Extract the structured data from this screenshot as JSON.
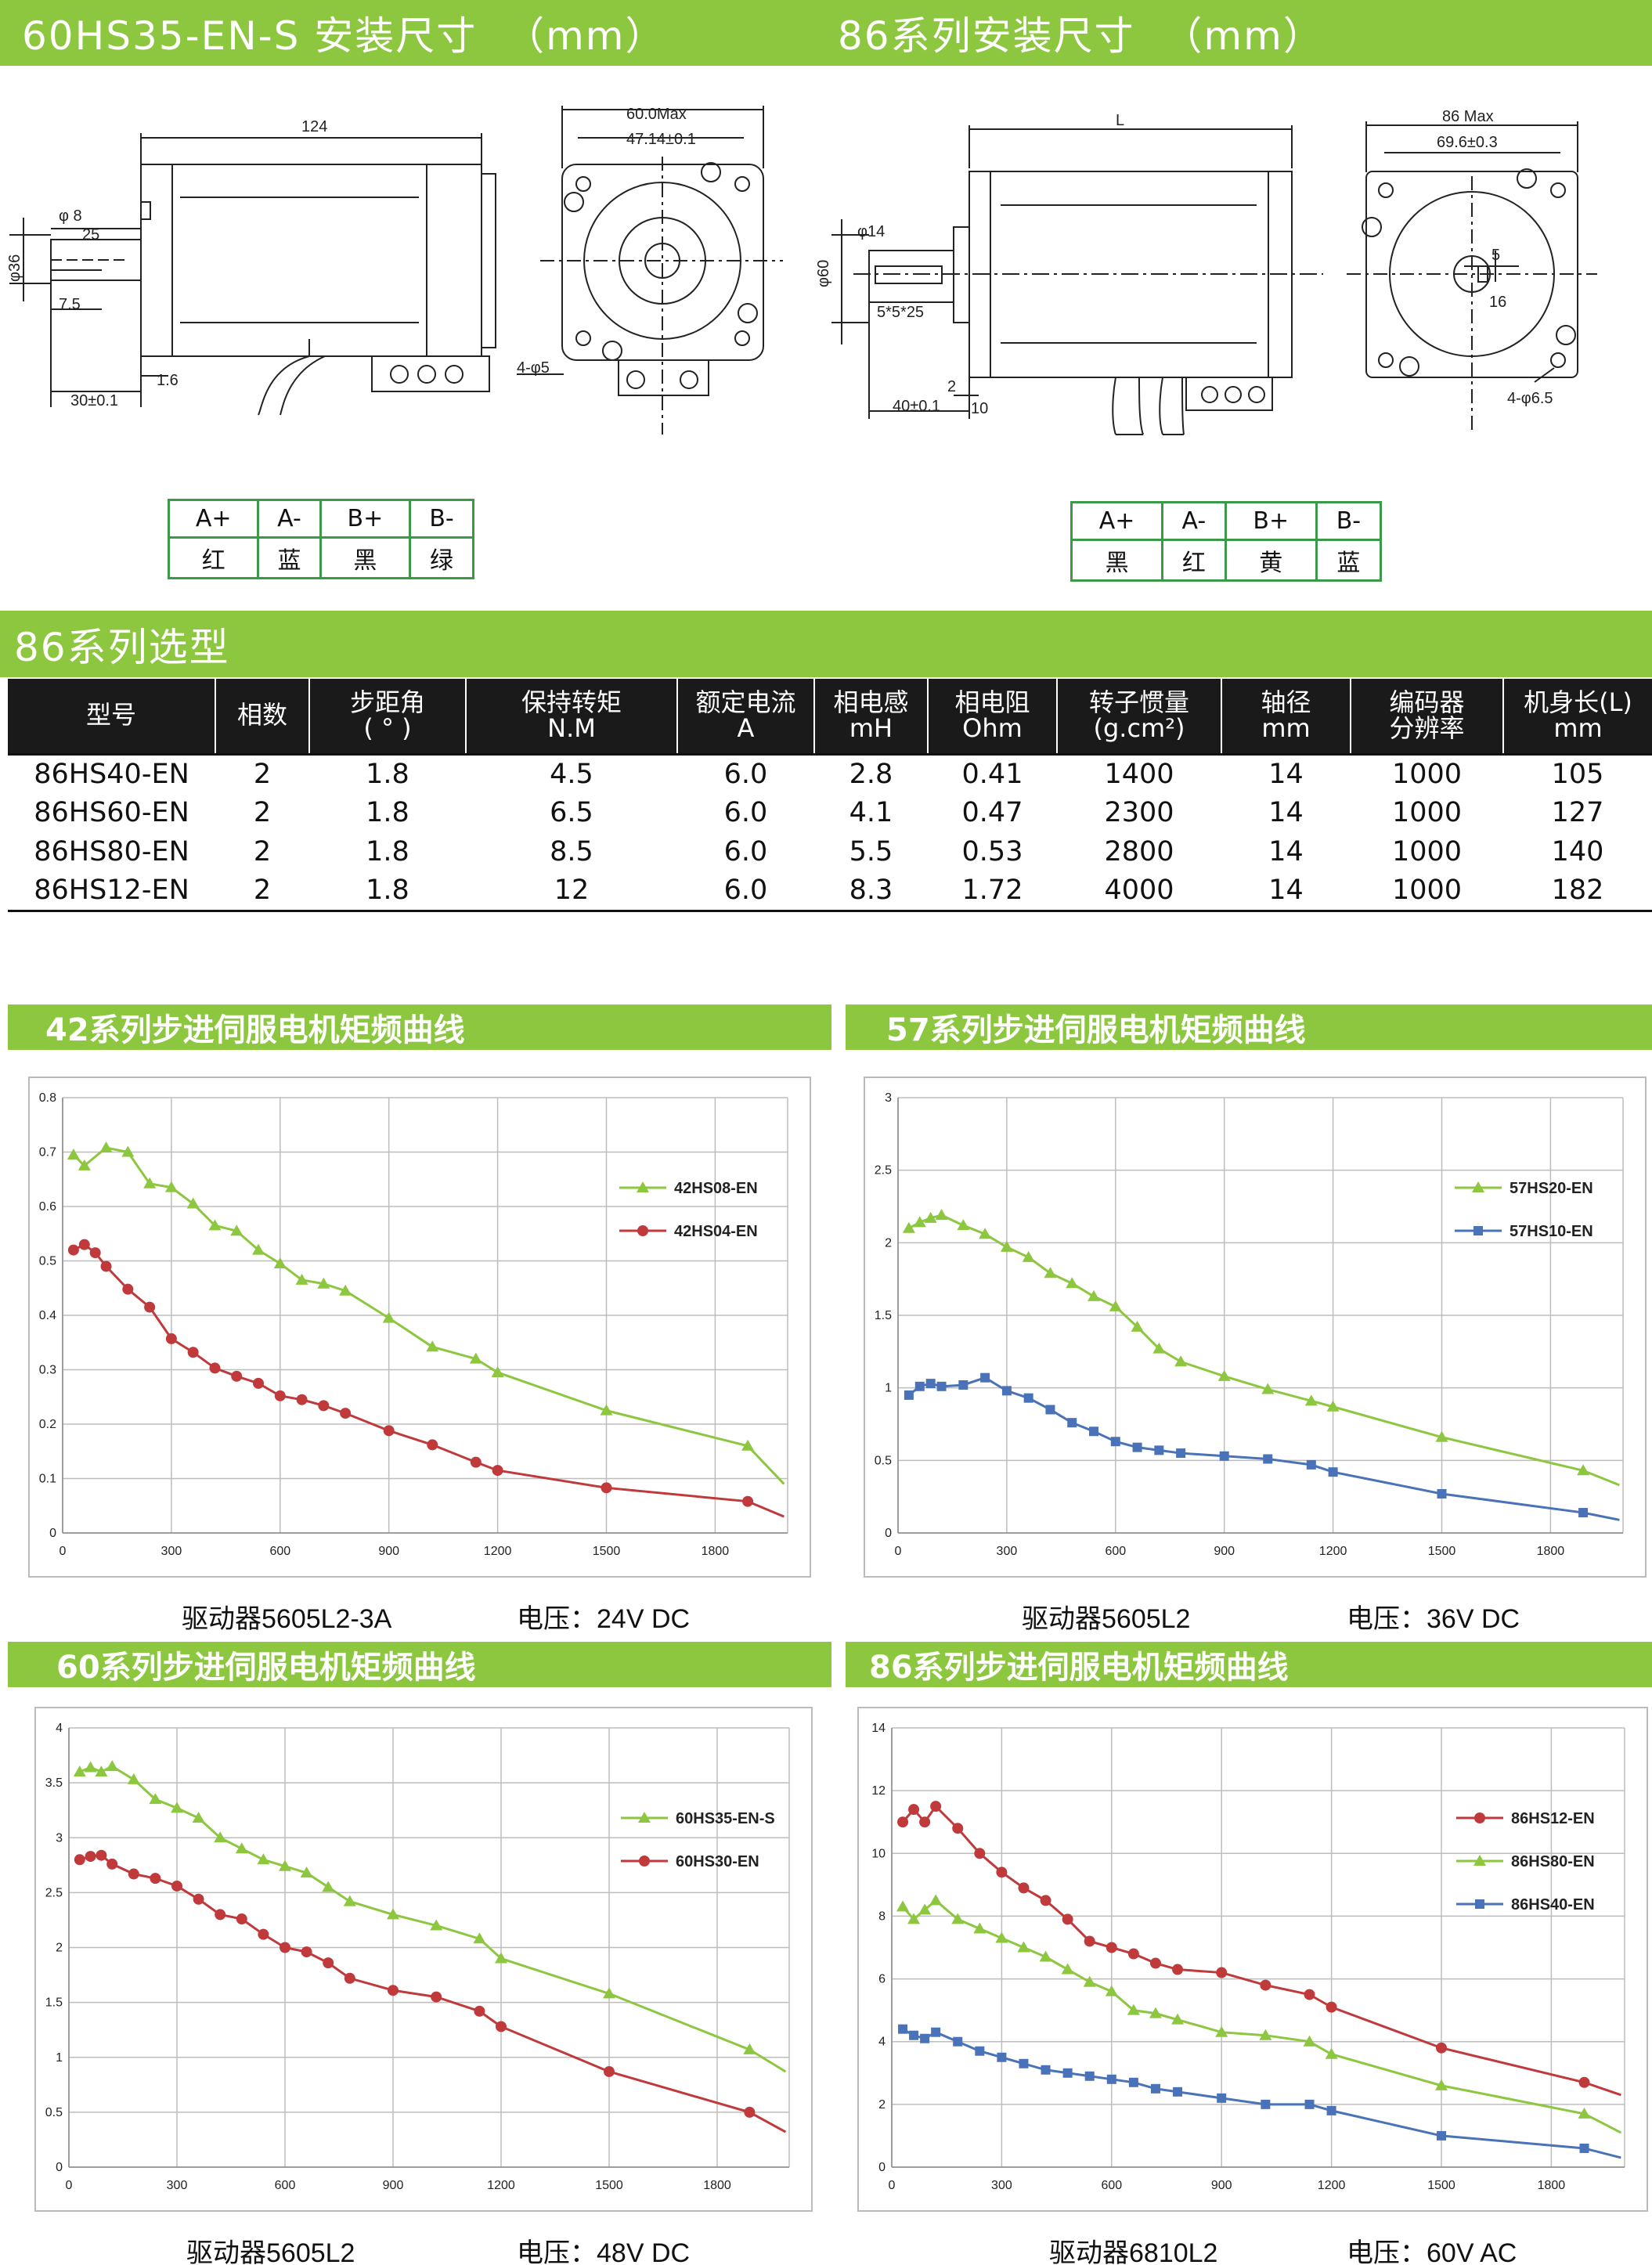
{
  "header": {
    "left_title": "60HS35-EN-S 安装尺寸  （mm）",
    "right_title": "86系列安装尺寸  （mm）"
  },
  "drawing_60": {
    "labels": [
      "124",
      "60.0Max",
      "47.14±0.1",
      "φ 8",
      "25",
      "φ36",
      "7.5",
      "1.6",
      "30±0.1",
      "4-φ5"
    ]
  },
  "drawing_86": {
    "labels": [
      "L",
      "86 Max",
      "69.6±0.3",
      "φ14",
      "φ60",
      "5*5*25",
      "2",
      "40±0.1",
      "10",
      "5",
      "16",
      "4-φ6.5"
    ]
  },
  "wire_60": {
    "pins": [
      "A+",
      "A-",
      "B+",
      "B-"
    ],
    "colors": [
      "红",
      "蓝",
      "黑",
      "绿"
    ]
  },
  "wire_86": {
    "pins": [
      "A+",
      "A-",
      "B+",
      "B-"
    ],
    "colors": [
      "黑",
      "红",
      "黄",
      "蓝"
    ]
  },
  "selection": {
    "title": "86系列选型",
    "headers": [
      [
        "型号"
      ],
      [
        "相数"
      ],
      [
        "步距角",
        "(  °  )"
      ],
      [
        "保持转矩",
        "N.M"
      ],
      [
        "额定电流",
        "A"
      ],
      [
        "相电感",
        "mH"
      ],
      [
        "相电阻",
        "Ohm"
      ],
      [
        "转子惯量",
        "(g.cm²)"
      ],
      [
        "轴径",
        "mm"
      ],
      [
        "编码器",
        "分辨率"
      ],
      [
        "机身长(L)",
        "mm"
      ]
    ],
    "rows": [
      [
        "86HS40-EN",
        "2",
        "1.8",
        "4.5",
        "6.0",
        "2.8",
        "0.41",
        "1400",
        "14",
        "1000",
        "105"
      ],
      [
        "86HS60-EN",
        "2",
        "1.8",
        "6.5",
        "6.0",
        "4.1",
        "0.47",
        "2300",
        "14",
        "1000",
        "127"
      ],
      [
        "86HS80-EN",
        "2",
        "1.8",
        "8.5",
        "6.0",
        "5.5",
        "0.53",
        "2800",
        "14",
        "1000",
        "140"
      ],
      [
        "86HS12-EN",
        "2",
        "1.8",
        "12",
        "6.0",
        "8.3",
        "1.72",
        "4000",
        "14",
        "1000",
        "182"
      ]
    ]
  },
  "charts": {
    "c42": {
      "title": "42系列步进伺服电机矩频曲线",
      "driver": "驱动器5605L2-3A",
      "voltage": "电压：24V DC"
    },
    "c57": {
      "title": "57系列步进伺服电机矩频曲线",
      "driver": "驱动器5605L2",
      "voltage": "电压：36V DC"
    },
    "c60": {
      "title": "60系列步进伺服电机矩频曲线",
      "driver": "驱动器5605L2",
      "voltage": "电压：48V DC"
    },
    "c86": {
      "title": "86系列步进伺服电机矩频曲线",
      "driver": "驱动器6810L2",
      "voltage": "电压：60V AC"
    }
  },
  "colors": {
    "accent": "#8dc63f",
    "green": "#8dc63f",
    "red": "#c0393b",
    "blue": "#4a72b8",
    "table_header": "#1a1a1a",
    "wire_border": "#3a9a48"
  },
  "chart_data": [
    {
      "type": "line",
      "title": "42系列步进伺服电机矩频曲线",
      "ylim": [
        0,
        0.8
      ],
      "yticks": [
        0,
        0.1,
        0.2,
        0.3,
        0.4,
        0.5,
        0.6,
        0.7,
        0.8
      ],
      "xlim": [
        0,
        2000
      ],
      "xticks": [
        0,
        300,
        600,
        900,
        1200,
        1500,
        1800
      ],
      "legend": "right",
      "series": [
        {
          "name": "42HS08-EN",
          "color": "#8dc63f",
          "marker": "triangle",
          "x": [
            30,
            60,
            120,
            180,
            240,
            300,
            360,
            420,
            480,
            540,
            600,
            660,
            720,
            780,
            900,
            1020,
            1140,
            1200,
            1500,
            1890,
            1990
          ],
          "y": [
            0.695,
            0.675,
            0.708,
            0.7,
            0.642,
            0.635,
            0.605,
            0.565,
            0.555,
            0.52,
            0.495,
            0.465,
            0.458,
            0.445,
            0.395,
            0.342,
            0.32,
            0.295,
            0.225,
            0.16,
            0.09
          ]
        },
        {
          "name": "42HS04-EN",
          "color": "#c0393b",
          "marker": "circle",
          "x": [
            30,
            60,
            90,
            120,
            180,
            240,
            300,
            360,
            420,
            480,
            540,
            600,
            660,
            720,
            780,
            900,
            1020,
            1140,
            1200,
            1500,
            1890,
            1990
          ],
          "y": [
            0.52,
            0.53,
            0.515,
            0.49,
            0.448,
            0.415,
            0.357,
            0.332,
            0.303,
            0.288,
            0.275,
            0.252,
            0.245,
            0.234,
            0.22,
            0.188,
            0.162,
            0.13,
            0.115,
            0.083,
            0.058,
            0.03
          ]
        }
      ]
    },
    {
      "type": "line",
      "title": "57系列步进伺服电机矩频曲线",
      "ylim": [
        0,
        3
      ],
      "yticks": [
        0,
        0.5,
        1,
        1.5,
        2,
        2.5,
        3
      ],
      "xlim": [
        0,
        2000
      ],
      "xticks": [
        0,
        300,
        600,
        900,
        1200,
        1500,
        1800
      ],
      "legend": "right",
      "series": [
        {
          "name": "57HS20-EN",
          "color": "#8dc63f",
          "marker": "triangle",
          "x": [
            30,
            60,
            90,
            120,
            180,
            240,
            300,
            360,
            420,
            480,
            540,
            600,
            660,
            720,
            780,
            900,
            1020,
            1140,
            1200,
            1500,
            1890,
            1990
          ],
          "y": [
            2.1,
            2.14,
            2.17,
            2.19,
            2.12,
            2.06,
            1.97,
            1.9,
            1.79,
            1.72,
            1.63,
            1.56,
            1.42,
            1.27,
            1.18,
            1.08,
            0.99,
            0.91,
            0.87,
            0.66,
            0.43,
            0.33
          ]
        },
        {
          "name": "57HS10-EN",
          "color": "#4a72b8",
          "marker": "square",
          "x": [
            30,
            60,
            90,
            120,
            180,
            240,
            300,
            360,
            420,
            480,
            540,
            600,
            660,
            720,
            780,
            900,
            1020,
            1140,
            1200,
            1500,
            1890,
            1990
          ],
          "y": [
            0.95,
            1.01,
            1.03,
            1.01,
            1.02,
            1.07,
            0.98,
            0.93,
            0.85,
            0.76,
            0.7,
            0.63,
            0.59,
            0.57,
            0.55,
            0.53,
            0.51,
            0.47,
            0.42,
            0.27,
            0.14,
            0.09
          ]
        }
      ]
    },
    {
      "type": "line",
      "title": "60系列步进伺服电机矩频曲线",
      "ylim": [
        0,
        4
      ],
      "yticks": [
        0,
        0.5,
        1,
        1.5,
        2,
        2.5,
        3,
        3.5,
        4
      ],
      "xlim": [
        0,
        2000
      ],
      "xticks": [
        0,
        300,
        600,
        900,
        1200,
        1500,
        1800
      ],
      "legend": "right",
      "series": [
        {
          "name": "60HS35-EN-S",
          "color": "#8dc63f",
          "marker": "triangle",
          "x": [
            30,
            60,
            90,
            120,
            180,
            240,
            300,
            360,
            420,
            480,
            540,
            600,
            660,
            720,
            780,
            900,
            1020,
            1140,
            1200,
            1500,
            1890,
            1990
          ],
          "y": [
            3.6,
            3.64,
            3.6,
            3.65,
            3.53,
            3.35,
            3.27,
            3.18,
            3.0,
            2.9,
            2.8,
            2.74,
            2.68,
            2.55,
            2.42,
            2.3,
            2.2,
            2.08,
            1.9,
            1.58,
            1.07,
            0.87
          ]
        },
        {
          "name": "60HS30-EN",
          "color": "#c0393b",
          "marker": "circle",
          "x": [
            30,
            60,
            90,
            120,
            180,
            240,
            300,
            360,
            420,
            480,
            540,
            600,
            660,
            720,
            780,
            900,
            1020,
            1140,
            1200,
            1500,
            1890,
            1990
          ],
          "y": [
            2.8,
            2.83,
            2.84,
            2.76,
            2.67,
            2.63,
            2.56,
            2.44,
            2.3,
            2.26,
            2.12,
            2.0,
            1.96,
            1.86,
            1.72,
            1.61,
            1.55,
            1.42,
            1.28,
            0.87,
            0.5,
            0.32
          ]
        }
      ]
    },
    {
      "type": "line",
      "title": "86系列步进伺服电机矩频曲线",
      "ylim": [
        0,
        14
      ],
      "yticks": [
        0,
        2,
        4,
        6,
        8,
        10,
        12,
        14
      ],
      "xlim": [
        0,
        2000
      ],
      "xticks": [
        0,
        300,
        600,
        900,
        1200,
        1500,
        1800
      ],
      "legend": "right",
      "series": [
        {
          "name": "86HS12-EN",
          "color": "#c0393b",
          "marker": "circle",
          "x": [
            30,
            60,
            90,
            120,
            180,
            240,
            300,
            360,
            420,
            480,
            540,
            600,
            660,
            720,
            780,
            900,
            1020,
            1140,
            1200,
            1500,
            1890,
            1990
          ],
          "y": [
            11.0,
            11.4,
            11.0,
            11.5,
            10.8,
            10.0,
            9.4,
            8.9,
            8.5,
            7.9,
            7.2,
            7.0,
            6.8,
            6.5,
            6.3,
            6.2,
            5.8,
            5.5,
            5.1,
            3.8,
            2.7,
            2.3
          ]
        },
        {
          "name": "86HS80-EN",
          "color": "#8dc63f",
          "marker": "triangle",
          "x": [
            30,
            60,
            90,
            120,
            180,
            240,
            300,
            360,
            420,
            480,
            540,
            600,
            660,
            720,
            780,
            900,
            1020,
            1140,
            1200,
            1500,
            1890,
            1990
          ],
          "y": [
            8.3,
            7.9,
            8.2,
            8.5,
            7.9,
            7.6,
            7.3,
            7.0,
            6.7,
            6.3,
            5.9,
            5.6,
            5.0,
            4.9,
            4.7,
            4.3,
            4.2,
            4.0,
            3.6,
            2.6,
            1.7,
            1.1
          ]
        },
        {
          "name": "86HS40-EN",
          "color": "#4a72b8",
          "marker": "square",
          "x": [
            30,
            60,
            90,
            120,
            180,
            240,
            300,
            360,
            420,
            480,
            540,
            600,
            660,
            720,
            780,
            900,
            1020,
            1140,
            1200,
            1500,
            1890,
            1990
          ],
          "y": [
            4.4,
            4.2,
            4.1,
            4.3,
            4.0,
            3.7,
            3.5,
            3.3,
            3.1,
            3.0,
            2.9,
            2.8,
            2.7,
            2.5,
            2.4,
            2.2,
            2.0,
            2.0,
            1.8,
            1.0,
            0.6,
            0.3
          ]
        }
      ]
    }
  ]
}
